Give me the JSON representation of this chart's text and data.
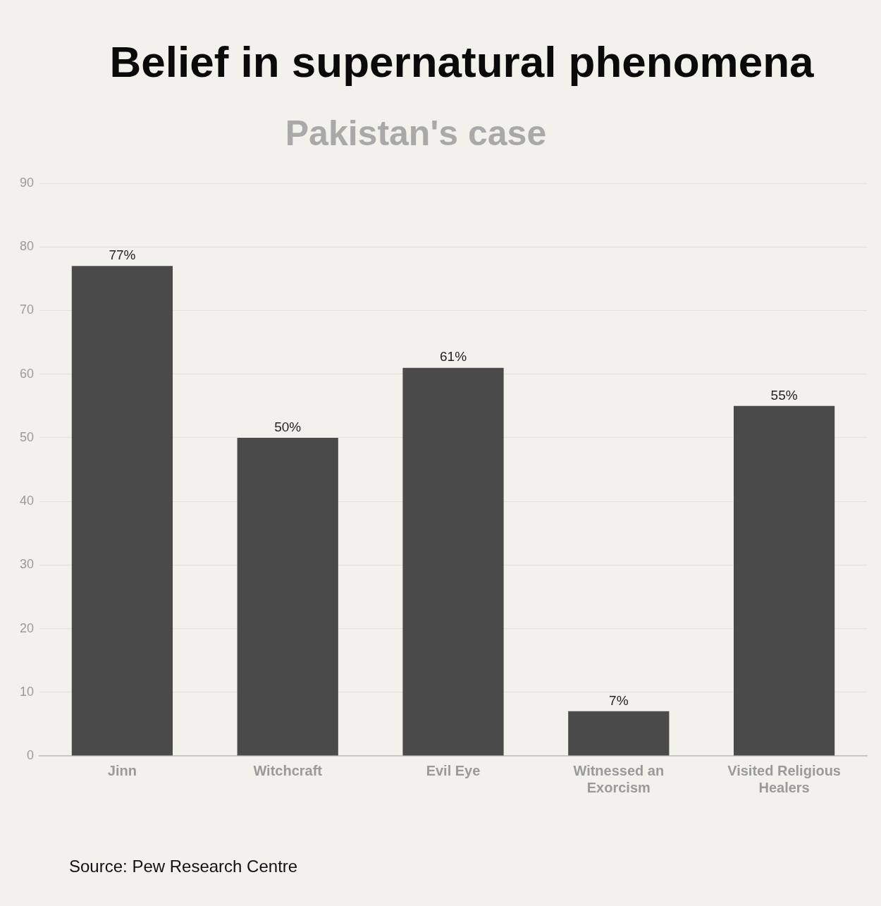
{
  "chart_data": {
    "type": "bar",
    "title": "Belief in supernatural phenomena",
    "subtitle": "Pakistan's case",
    "categories": [
      "Jinn",
      "Witchcraft",
      "Evil Eye",
      "Witnessed an Exorcism",
      "Visited Religious Healers"
    ],
    "values": [
      77,
      50,
      61,
      7,
      55
    ],
    "value_labels": [
      "77%",
      "50%",
      "61%",
      "7%",
      "55%"
    ],
    "color": "#4a4a4a",
    "ylim": [
      0,
      90
    ],
    "yticks": [
      0,
      10,
      20,
      30,
      40,
      50,
      60,
      70,
      80,
      90
    ],
    "grid": "y",
    "legend": false,
    "annotations": [
      "Source: Pew Research Centre"
    ]
  }
}
